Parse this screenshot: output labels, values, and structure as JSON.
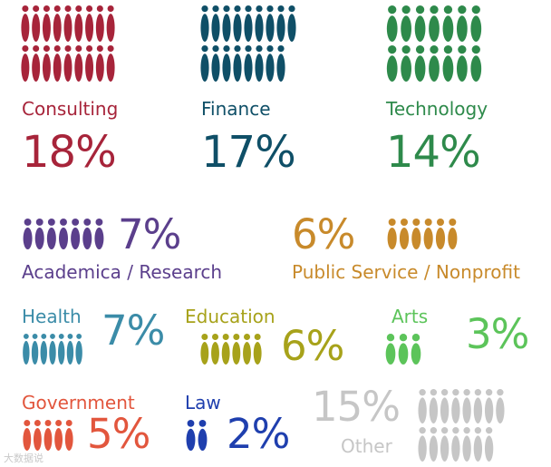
{
  "chart_data": {
    "type": "pictograph",
    "title": "",
    "unit": "%",
    "categories": [
      {
        "key": "consulting",
        "label": "Consulting",
        "value": 18,
        "value_label": "18%",
        "color": "#a7243a"
      },
      {
        "key": "finance",
        "label": "Finance",
        "value": 17,
        "value_label": "17%",
        "color": "#0f4f67"
      },
      {
        "key": "technology",
        "label": "Technology",
        "value": 14,
        "value_label": "14%",
        "color": "#2e8a4b"
      },
      {
        "key": "academica",
        "label": "Academica / Research",
        "value": 7,
        "value_label": "7%",
        "color": "#5b3f8c"
      },
      {
        "key": "public_service",
        "label": "Public Service / Nonprofit",
        "value": 6,
        "value_label": "6%",
        "color": "#c88a2b"
      },
      {
        "key": "health",
        "label": "Health",
        "value": 7,
        "value_label": "7%",
        "color": "#3b8ca8"
      },
      {
        "key": "education",
        "label": "Education",
        "value": 6,
        "value_label": "6%",
        "color": "#a7a21a"
      },
      {
        "key": "arts",
        "label": "Arts",
        "value": 3,
        "value_label": "3%",
        "color": "#5cc45a"
      },
      {
        "key": "government",
        "label": "Government",
        "value": 5,
        "value_label": "5%",
        "color": "#e2563d"
      },
      {
        "key": "law",
        "label": "Law",
        "value": 2,
        "value_label": "2%",
        "color": "#1f3fae"
      },
      {
        "key": "other",
        "label": "Other",
        "value": 15,
        "value_label": "15%",
        "color": "#c6c6c6"
      }
    ]
  },
  "watermark": "大数据说"
}
